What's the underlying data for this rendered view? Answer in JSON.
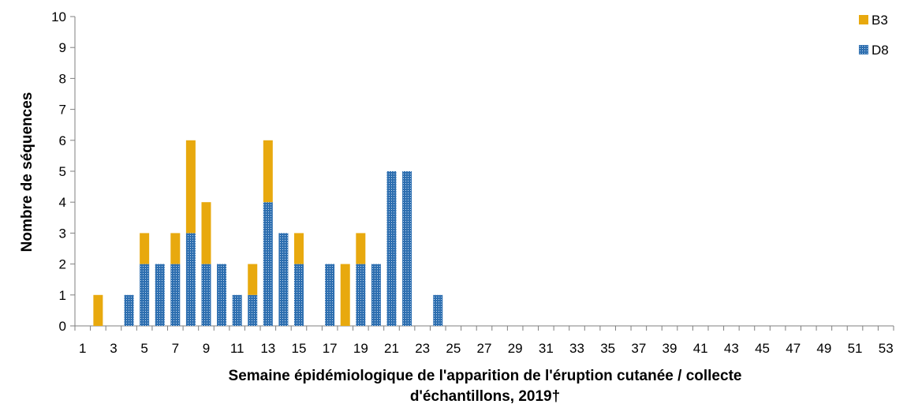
{
  "chart_data": {
    "type": "bar",
    "stacked": true,
    "xlabel": "Semaine épidémiologique de l'apparition de l'éruption cutanée / collecte d'échantillons, 2019†",
    "xlabel_lines": [
      "Semaine épidémiologique de l'apparition de l'éruption cutanée / collecte",
      "d'échantillons, 2019†"
    ],
    "ylabel": "Nombre de séquences",
    "ylim": [
      0,
      10
    ],
    "y_ticks": [
      0,
      1,
      2,
      3,
      4,
      5,
      6,
      7,
      8,
      9,
      10
    ],
    "grid": false,
    "legend_position": "top-right",
    "x": [
      1,
      2,
      3,
      4,
      5,
      6,
      7,
      8,
      9,
      10,
      11,
      12,
      13,
      14,
      15,
      16,
      17,
      18,
      19,
      20,
      21,
      22,
      23,
      24,
      25,
      26,
      27,
      28,
      29,
      30,
      31,
      32,
      33,
      34,
      35,
      36,
      37,
      38,
      39,
      40,
      41,
      42,
      43,
      44,
      45,
      46,
      47,
      48,
      49,
      50,
      51,
      52,
      53
    ],
    "x_tick_labels": [
      "1",
      "3",
      "5",
      "7",
      "9",
      "11",
      "13",
      "15",
      "17",
      "19",
      "21",
      "23",
      "25",
      "27",
      "29",
      "31",
      "33",
      "35",
      "37",
      "39",
      "41",
      "43",
      "45",
      "47",
      "49",
      "51",
      "53"
    ],
    "series": [
      {
        "name": "D8",
        "color": "#2e6fb0",
        "pattern": "dotted",
        "values": [
          0,
          0,
          0,
          1,
          2,
          2,
          2,
          3,
          2,
          2,
          1,
          1,
          4,
          3,
          2,
          0,
          2,
          0,
          2,
          2,
          5,
          5,
          0,
          1,
          0,
          0,
          0,
          0,
          0,
          0,
          0,
          0,
          0,
          0,
          0,
          0,
          0,
          0,
          0,
          0,
          0,
          0,
          0,
          0,
          0,
          0,
          0,
          0,
          0,
          0,
          0,
          0,
          0
        ]
      },
      {
        "name": "B3",
        "color": "#e8a90e",
        "pattern": "solid",
        "values": [
          0,
          1,
          0,
          0,
          1,
          0,
          1,
          3,
          2,
          0,
          0,
          1,
          2,
          0,
          1,
          0,
          0,
          2,
          1,
          0,
          0,
          0,
          0,
          0,
          0,
          0,
          0,
          0,
          0,
          0,
          0,
          0,
          0,
          0,
          0,
          0,
          0,
          0,
          0,
          0,
          0,
          0,
          0,
          0,
          0,
          0,
          0,
          0,
          0,
          0,
          0,
          0,
          0
        ]
      }
    ],
    "legend_order": [
      "B3",
      "D8"
    ]
  }
}
